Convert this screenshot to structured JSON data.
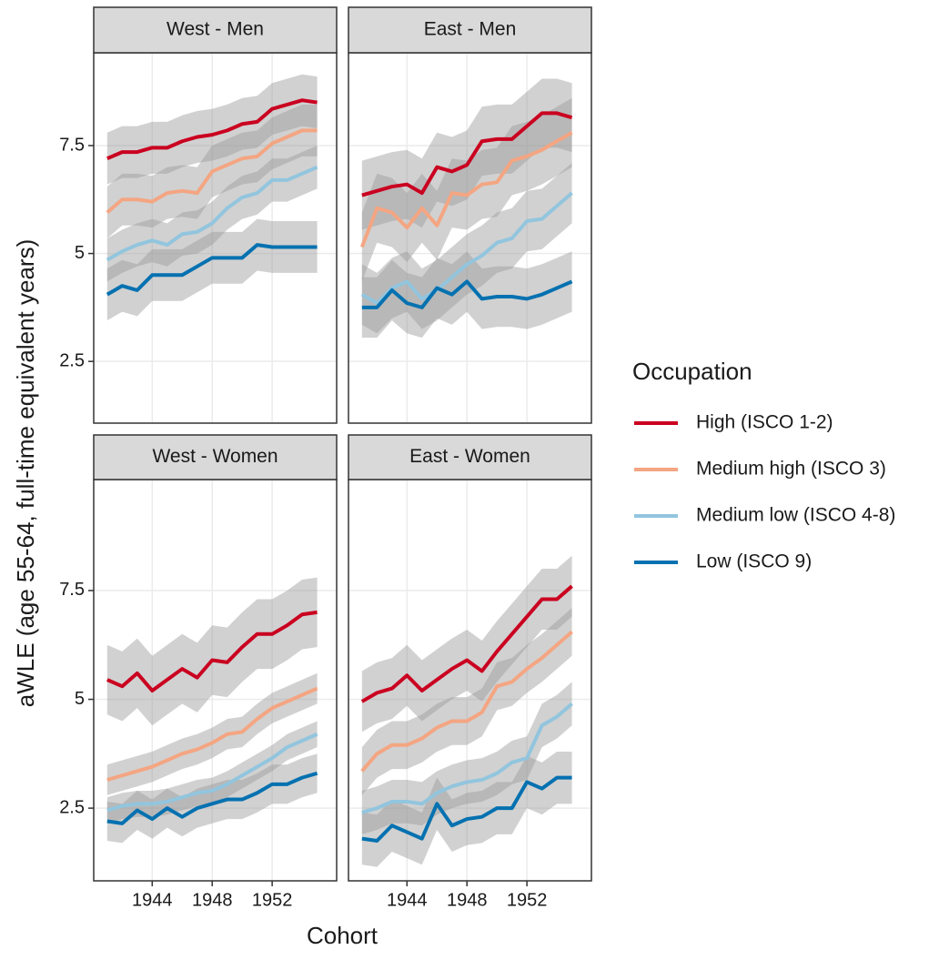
{
  "ylabel": "aWLE (age 55-64, full-time equivalent years)",
  "xlabel": "Cohort",
  "legend_title": "Occupation",
  "chart_data": [
    {
      "type": "line",
      "title": "West - Men",
      "x": [
        1941,
        1942,
        1943,
        1944,
        1945,
        1946,
        1947,
        1948,
        1949,
        1950,
        1951,
        1952,
        1953,
        1954,
        1955
      ],
      "xlim": [
        1940.1,
        1956.3
      ],
      "xticks": [
        1944,
        1948,
        1952
      ],
      "ylim": [
        1.07,
        9.65
      ],
      "yticks": [
        2.5,
        5.0,
        7.5
      ],
      "grid": true,
      "series": [
        {
          "name": "High (ISCO 1-2)",
          "color": "#ca0020",
          "band": 0.6,
          "values": [
            7.2,
            7.35,
            7.35,
            7.45,
            7.45,
            7.6,
            7.7,
            7.75,
            7.85,
            8.0,
            8.05,
            8.35,
            8.45,
            8.55,
            8.5
          ]
        },
        {
          "name": "Medium high (ISCO 3)",
          "color": "#f4a582",
          "band": 0.6,
          "values": [
            5.95,
            6.25,
            6.25,
            6.2,
            6.4,
            6.45,
            6.4,
            6.9,
            7.05,
            7.2,
            7.25,
            7.55,
            7.7,
            7.85,
            7.85
          ]
        },
        {
          "name": "Medium low (ISCO 4-8)",
          "color": "#92c5de",
          "band": 0.5,
          "values": [
            4.85,
            5.05,
            5.2,
            5.3,
            5.2,
            5.45,
            5.5,
            5.7,
            6.05,
            6.3,
            6.4,
            6.7,
            6.7,
            6.85,
            7.0
          ]
        },
        {
          "name": "Low (ISCO 9)",
          "color": "#0571b0",
          "band": 0.6,
          "values": [
            4.05,
            4.25,
            4.15,
            4.5,
            4.5,
            4.5,
            4.7,
            4.9,
            4.9,
            4.9,
            5.2,
            5.15,
            5.15,
            5.15,
            5.15
          ]
        }
      ]
    },
    {
      "type": "line",
      "title": "East - Men",
      "x": [
        1941,
        1942,
        1943,
        1944,
        1945,
        1946,
        1947,
        1948,
        1949,
        1950,
        1951,
        1952,
        1953,
        1954,
        1955
      ],
      "xlim": [
        1940.1,
        1956.3
      ],
      "xticks": [
        1944,
        1948,
        1952
      ],
      "ylim": [
        1.07,
        9.65
      ],
      "yticks": [
        2.5,
        5.0,
        7.5
      ],
      "grid": true,
      "series": [
        {
          "name": "High (ISCO 1-2)",
          "color": "#ca0020",
          "band": 0.8,
          "values": [
            6.35,
            6.45,
            6.55,
            6.6,
            6.4,
            7.0,
            6.9,
            7.05,
            7.6,
            7.65,
            7.65,
            7.95,
            8.25,
            8.25,
            8.15
          ]
        },
        {
          "name": "Medium high (ISCO 3)",
          "color": "#f4a582",
          "band": 0.8,
          "values": [
            5.15,
            6.05,
            5.95,
            5.6,
            6.05,
            5.65,
            6.4,
            6.35,
            6.6,
            6.65,
            7.15,
            7.25,
            7.4,
            7.6,
            7.8
          ]
        },
        {
          "name": "Medium low (ISCO 4-8)",
          "color": "#92c5de",
          "band": 0.7,
          "values": [
            4.05,
            3.85,
            4.2,
            4.35,
            3.95,
            4.15,
            4.45,
            4.75,
            4.95,
            5.25,
            5.35,
            5.75,
            5.8,
            6.1,
            6.4
          ]
        },
        {
          "name": "Low (ISCO 9)",
          "color": "#0571b0",
          "band": 0.7,
          "values": [
            3.75,
            3.75,
            4.15,
            3.85,
            3.75,
            4.2,
            4.05,
            4.35,
            3.95,
            4.0,
            4.0,
            3.95,
            4.05,
            4.2,
            4.35
          ]
        }
      ]
    },
    {
      "type": "line",
      "title": "West - Women",
      "x": [
        1941,
        1942,
        1943,
        1944,
        1945,
        1946,
        1947,
        1948,
        1949,
        1950,
        1951,
        1952,
        1953,
        1954,
        1955
      ],
      "xlim": [
        1940.1,
        1956.3
      ],
      "xticks": [
        1944,
        1948,
        1952
      ],
      "ylim": [
        0.83,
        10.05
      ],
      "yticks": [
        2.5,
        5.0,
        7.5
      ],
      "grid": true,
      "series": [
        {
          "name": "High (ISCO 1-2)",
          "color": "#ca0020",
          "band": 0.8,
          "values": [
            5.45,
            5.3,
            5.6,
            5.2,
            5.45,
            5.7,
            5.5,
            5.9,
            5.85,
            6.2,
            6.5,
            6.5,
            6.7,
            6.95,
            7.0
          ]
        },
        {
          "name": "Medium high (ISCO 3)",
          "color": "#f4a582",
          "band": 0.35,
          "values": [
            3.15,
            3.25,
            3.35,
            3.45,
            3.6,
            3.75,
            3.85,
            4.0,
            4.2,
            4.25,
            4.55,
            4.8,
            4.95,
            5.1,
            5.25
          ]
        },
        {
          "name": "Medium low (ISCO 4-8)",
          "color": "#92c5de",
          "band": 0.3,
          "values": [
            2.45,
            2.55,
            2.6,
            2.6,
            2.65,
            2.75,
            2.85,
            2.9,
            3.05,
            3.25,
            3.45,
            3.65,
            3.9,
            4.05,
            4.2
          ]
        },
        {
          "name": "Low (ISCO 9)",
          "color": "#0571b0",
          "band": 0.45,
          "values": [
            2.2,
            2.15,
            2.45,
            2.25,
            2.5,
            2.3,
            2.5,
            2.6,
            2.7,
            2.7,
            2.85,
            3.05,
            3.05,
            3.2,
            3.3
          ]
        }
      ]
    },
    {
      "type": "line",
      "title": "East - Women",
      "x": [
        1941,
        1942,
        1943,
        1944,
        1945,
        1946,
        1947,
        1948,
        1949,
        1950,
        1951,
        1952,
        1953,
        1954,
        1955
      ],
      "xlim": [
        1940.1,
        1956.3
      ],
      "xticks": [
        1944,
        1948,
        1952
      ],
      "ylim": [
        0.83,
        10.05
      ],
      "yticks": [
        2.5,
        5.0,
        7.5
      ],
      "grid": true,
      "series": [
        {
          "name": "High (ISCO 1-2)",
          "color": "#ca0020",
          "band": 0.7,
          "values": [
            4.95,
            5.15,
            5.25,
            5.55,
            5.2,
            5.45,
            5.7,
            5.9,
            5.65,
            6.1,
            6.5,
            6.9,
            7.3,
            7.3,
            7.6
          ]
        },
        {
          "name": "Medium high (ISCO 3)",
          "color": "#f4a582",
          "band": 0.55,
          "values": [
            3.35,
            3.75,
            3.95,
            3.95,
            4.1,
            4.35,
            4.5,
            4.5,
            4.7,
            5.3,
            5.4,
            5.7,
            5.95,
            6.25,
            6.55
          ]
        },
        {
          "name": "Medium low (ISCO 4-8)",
          "color": "#92c5de",
          "band": 0.5,
          "values": [
            2.4,
            2.5,
            2.65,
            2.65,
            2.6,
            2.85,
            3.0,
            3.1,
            3.15,
            3.3,
            3.55,
            3.65,
            4.4,
            4.6,
            4.9
          ]
        },
        {
          "name": "Low (ISCO 9)",
          "color": "#0571b0",
          "band": 0.6,
          "values": [
            1.8,
            1.75,
            2.1,
            1.95,
            1.8,
            2.6,
            2.1,
            2.25,
            2.3,
            2.5,
            2.5,
            3.1,
            2.95,
            3.2,
            3.2
          ]
        }
      ]
    }
  ]
}
